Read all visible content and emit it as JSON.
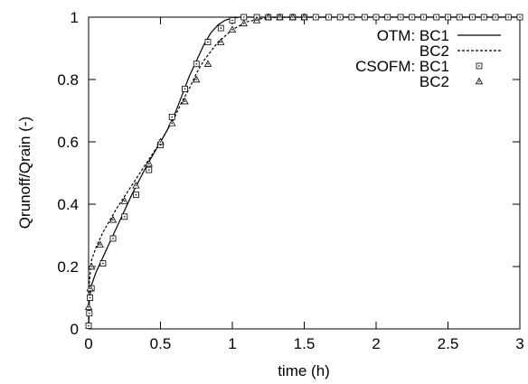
{
  "chart_data": {
    "type": "line",
    "xlabel": "time (h)",
    "ylabel": "Qrunoff/Qrain (-)",
    "xlim": [
      0,
      3
    ],
    "ylim": [
      0,
      1
    ],
    "x_ticks": [
      "0",
      "0.5",
      "1",
      "1.5",
      "2",
      "2.5",
      "3"
    ],
    "y_ticks": [
      "0",
      "0.2",
      "0.4",
      "0.6",
      "0.8",
      "1"
    ],
    "grid": false,
    "legend_position": "top-right",
    "series": [
      {
        "group": "OTM:",
        "name": "BC1",
        "style": "solid-line",
        "x": [
          0,
          0.005,
          0.02,
          0.05,
          0.1,
          0.15,
          0.2,
          0.3,
          0.4,
          0.5,
          0.55,
          0.6,
          0.65,
          0.7,
          0.75,
          0.8,
          0.85,
          0.9,
          0.95,
          1.0,
          1.05,
          1.1,
          1.2,
          1.5,
          2.0,
          2.5,
          3.0
        ],
        "y": [
          0,
          0.09,
          0.14,
          0.18,
          0.23,
          0.28,
          0.33,
          0.43,
          0.52,
          0.6,
          0.64,
          0.69,
          0.75,
          0.81,
          0.86,
          0.91,
          0.95,
          0.975,
          0.99,
          0.997,
          1,
          1,
          1,
          1,
          1,
          1,
          1
        ]
      },
      {
        "group": "",
        "name": "BC2",
        "style": "dashed-line",
        "x": [
          0,
          0.005,
          0.02,
          0.05,
          0.1,
          0.15,
          0.2,
          0.3,
          0.4,
          0.5,
          0.55,
          0.6,
          0.65,
          0.7,
          0.75,
          0.8,
          0.9,
          1.0,
          1.1,
          1.2,
          1.3,
          1.4,
          1.5,
          2.0,
          2.5,
          3.0
        ],
        "y": [
          0,
          0.15,
          0.22,
          0.26,
          0.31,
          0.35,
          0.39,
          0.46,
          0.53,
          0.6,
          0.64,
          0.68,
          0.73,
          0.77,
          0.82,
          0.86,
          0.92,
          0.96,
          0.985,
          0.995,
          0.999,
          1,
          1,
          1,
          1,
          1
        ]
      },
      {
        "group": "CSOFM:",
        "name": "BC1",
        "style": "square-markers",
        "x": [
          0,
          0.005,
          0.01,
          0.02,
          0.1,
          0.17,
          0.25,
          0.33,
          0.42,
          0.5,
          0.58,
          0.67,
          0.75,
          0.83,
          0.92,
          1.0,
          1.08,
          1.17,
          1.25,
          1.33,
          1.42,
          1.5,
          1.58,
          1.67,
          1.75,
          1.83,
          1.92,
          2.0,
          2.08,
          2.17,
          2.25,
          2.33,
          2.42,
          2.5,
          2.58,
          2.67,
          2.75,
          2.83,
          2.92,
          3.0
        ],
        "y": [
          0.01,
          0.05,
          0.1,
          0.13,
          0.21,
          0.29,
          0.36,
          0.43,
          0.51,
          0.59,
          0.68,
          0.77,
          0.85,
          0.92,
          0.965,
          0.99,
          1,
          1,
          1,
          1,
          1,
          1,
          1,
          1,
          1,
          1,
          1,
          1,
          1,
          1,
          1,
          1,
          1,
          1,
          1,
          1,
          1,
          1,
          1,
          1
        ]
      },
      {
        "group": "",
        "name": "BC2",
        "style": "triangle-markers",
        "x": [
          0,
          0.01,
          0.02,
          0.08,
          0.17,
          0.25,
          0.33,
          0.42,
          0.5,
          0.58,
          0.67,
          0.75,
          0.83,
          0.92,
          1.0,
          1.08,
          1.17,
          1.25,
          1.33,
          1.42,
          1.5
        ],
        "y": [
          0.07,
          0.13,
          0.2,
          0.27,
          0.35,
          0.41,
          0.46,
          0.53,
          0.6,
          0.66,
          0.73,
          0.8,
          0.85,
          0.92,
          0.96,
          0.98,
          0.99,
          1,
          1,
          1,
          1
        ]
      }
    ]
  }
}
